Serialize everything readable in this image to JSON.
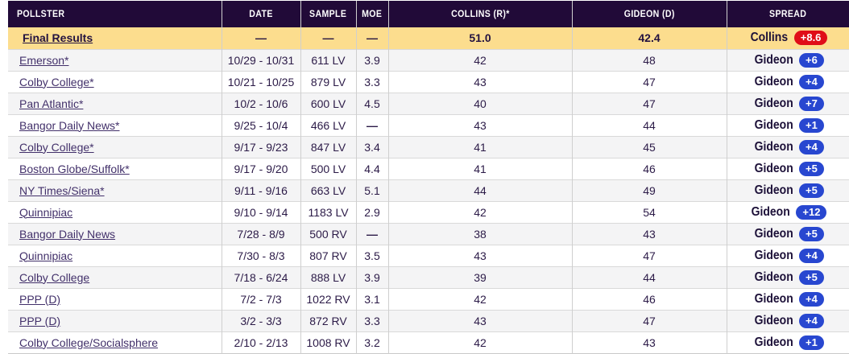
{
  "colors": {
    "header_bg": "#210a38",
    "header_text": "#ffffff",
    "final_row_bg": "#fcdd8e",
    "row_alt_bg": "#f4f4f5",
    "collins_pill": "#e00d18",
    "gideon_pill": "#2847d0"
  },
  "table": {
    "columns": [
      {
        "key": "pollster",
        "label": "POLLSTER"
      },
      {
        "key": "date",
        "label": "DATE"
      },
      {
        "key": "sample",
        "label": "SAMPLE"
      },
      {
        "key": "moe",
        "label": "MOE"
      },
      {
        "key": "collins",
        "label": "COLLINS (R)*"
      },
      {
        "key": "gideon",
        "label": "GIDEON (D)"
      },
      {
        "key": "spread",
        "label": "SPREAD"
      }
    ],
    "final_row": {
      "pollster": "Final Results",
      "date": "—",
      "sample": "—",
      "moe": "—",
      "collins": "51.0",
      "gideon": "42.4",
      "spread": {
        "winner": "Collins",
        "margin": "+8.6",
        "party": "R"
      }
    },
    "rows": [
      {
        "pollster": "Emerson*",
        "date": "10/29 - 10/31",
        "sample": "611 LV",
        "moe": "3.9",
        "collins": "42",
        "gideon": "48",
        "spread": {
          "winner": "Gideon",
          "margin": "+6",
          "party": "D"
        }
      },
      {
        "pollster": "Colby College*",
        "date": "10/21 - 10/25",
        "sample": "879 LV",
        "moe": "3.3",
        "collins": "43",
        "gideon": "47",
        "spread": {
          "winner": "Gideon",
          "margin": "+4",
          "party": "D"
        }
      },
      {
        "pollster": "Pan Atlantic*",
        "date": "10/2 - 10/6",
        "sample": "600 LV",
        "moe": "4.5",
        "collins": "40",
        "gideon": "47",
        "spread": {
          "winner": "Gideon",
          "margin": "+7",
          "party": "D"
        }
      },
      {
        "pollster": "Bangor Daily News*",
        "date": "9/25 - 10/4",
        "sample": "466 LV",
        "moe": "—",
        "collins": "43",
        "gideon": "44",
        "spread": {
          "winner": "Gideon",
          "margin": "+1",
          "party": "D"
        }
      },
      {
        "pollster": "Colby College*",
        "date": "9/17 - 9/23",
        "sample": "847 LV",
        "moe": "3.4",
        "collins": "41",
        "gideon": "45",
        "spread": {
          "winner": "Gideon",
          "margin": "+4",
          "party": "D"
        }
      },
      {
        "pollster": "Boston Globe/Suffolk*",
        "date": "9/17 - 9/20",
        "sample": "500 LV",
        "moe": "4.4",
        "collins": "41",
        "gideon": "46",
        "spread": {
          "winner": "Gideon",
          "margin": "+5",
          "party": "D"
        }
      },
      {
        "pollster": "NY Times/Siena*",
        "date": "9/11 - 9/16",
        "sample": "663 LV",
        "moe": "5.1",
        "collins": "44",
        "gideon": "49",
        "spread": {
          "winner": "Gideon",
          "margin": "+5",
          "party": "D"
        }
      },
      {
        "pollster": "Quinnipiac",
        "date": "9/10 - 9/14",
        "sample": "1183 LV",
        "moe": "2.9",
        "collins": "42",
        "gideon": "54",
        "spread": {
          "winner": "Gideon",
          "margin": "+12",
          "party": "D"
        }
      },
      {
        "pollster": "Bangor Daily News",
        "date": "7/28 - 8/9",
        "sample": "500 RV",
        "moe": "—",
        "collins": "38",
        "gideon": "43",
        "spread": {
          "winner": "Gideon",
          "margin": "+5",
          "party": "D"
        }
      },
      {
        "pollster": "Quinnipiac",
        "date": "7/30 - 8/3",
        "sample": "807 RV",
        "moe": "3.5",
        "collins": "43",
        "gideon": "47",
        "spread": {
          "winner": "Gideon",
          "margin": "+4",
          "party": "D"
        }
      },
      {
        "pollster": "Colby College",
        "date": "7/18 - 6/24",
        "sample": "888 LV",
        "moe": "3.9",
        "collins": "39",
        "gideon": "44",
        "spread": {
          "winner": "Gideon",
          "margin": "+5",
          "party": "D"
        }
      },
      {
        "pollster": "PPP (D)",
        "date": "7/2 - 7/3",
        "sample": "1022 RV",
        "moe": "3.1",
        "collins": "42",
        "gideon": "46",
        "spread": {
          "winner": "Gideon",
          "margin": "+4",
          "party": "D"
        }
      },
      {
        "pollster": "PPP (D)",
        "date": "3/2 - 3/3",
        "sample": "872 RV",
        "moe": "3.3",
        "collins": "43",
        "gideon": "47",
        "spread": {
          "winner": "Gideon",
          "margin": "+4",
          "party": "D"
        }
      },
      {
        "pollster": "Colby College/Socialsphere",
        "date": "2/10 - 2/13",
        "sample": "1008 RV",
        "moe": "3.2",
        "collins": "42",
        "gideon": "43",
        "spread": {
          "winner": "Gideon",
          "margin": "+1",
          "party": "D"
        }
      }
    ]
  }
}
